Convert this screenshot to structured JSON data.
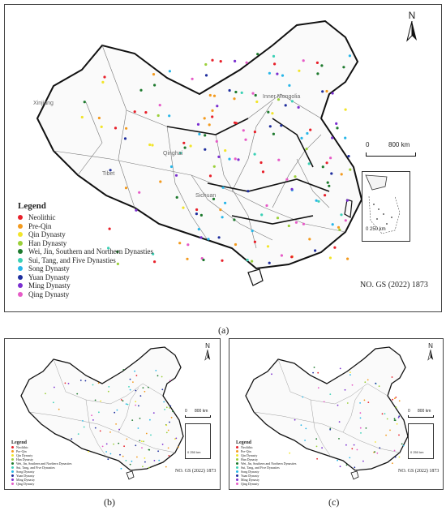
{
  "legend": {
    "title": "Legend",
    "items": [
      {
        "label": "Neolithic",
        "color": "#e8202a"
      },
      {
        "label": "Pre-Qin",
        "color": "#f39a1e"
      },
      {
        "label": "Qin Dynasty",
        "color": "#f2e52a"
      },
      {
        "label": "Han Dynasty",
        "color": "#9bd03a"
      },
      {
        "label": "Wei, Jin, Southern and Northern Dynasties",
        "color": "#1e7a2e"
      },
      {
        "label": "Sui, Tang, and Five Dynasties",
        "color": "#3cd1b6"
      },
      {
        "label": "Song Dynasty",
        "color": "#27b6e8"
      },
      {
        "label": "Yuan Dynasty",
        "color": "#1f2e9e"
      },
      {
        "label": "Ming Dynasty",
        "color": "#7b2fd0"
      },
      {
        "label": "Qing Dynasty",
        "color": "#e65bc7"
      }
    ]
  },
  "map_no": "NO. GS (2022) 1873",
  "north_label": "N",
  "scale_labels": {
    "zero": "0",
    "main": "800 km",
    "inset": "0   250 km"
  },
  "place_names": {
    "xinjiang": "Xinjiang",
    "tibet": "Tibet",
    "inner_mongolia": "Inner Mongolia",
    "qinghai": "Qinghai",
    "sichuan": "Sichuan"
  },
  "captions": {
    "a": "(a)",
    "b": "(b)",
    "c": "(c)"
  }
}
